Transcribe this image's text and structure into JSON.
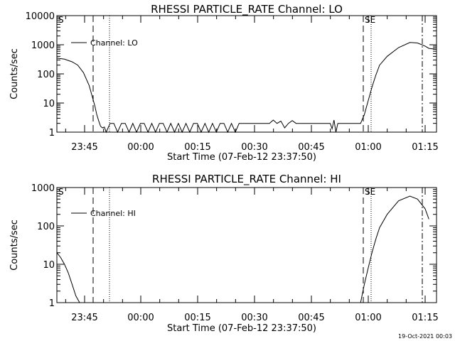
{
  "footer": {
    "timestamp": "19-Oct-2021 00:03"
  },
  "chart_data": [
    {
      "type": "line",
      "title": "RHESSI PARTICLE_RATE Channel: LO",
      "xlabel": "Start Time (07-Feb-12 23:37:50)",
      "ylabel": "Counts/sec",
      "yscale": "log",
      "ylim": [
        1,
        10000
      ],
      "ytick_labels": [
        "1",
        "10",
        "100",
        "1000",
        "10000"
      ],
      "x_unit": "minutes after 23:37:50",
      "xlim": [
        0,
        100
      ],
      "xtick_labels": [
        "23:45",
        "00:00",
        "00:15",
        "00:30",
        "00:45",
        "01:00",
        "01:15"
      ],
      "legend": "Channel: LO",
      "markers": {
        "start_label": "S",
        "end_label": "SE"
      },
      "series": [
        {
          "name": "Channel: LO",
          "x": [
            0,
            2,
            4,
            5.5,
            7,
            8.5,
            10,
            10.5,
            11,
            11.5,
            12,
            12.5,
            13,
            14,
            15,
            16,
            17,
            18,
            19,
            20,
            21,
            22,
            23,
            24,
            25,
            26,
            27,
            28,
            29,
            30,
            31,
            32,
            33,
            34,
            35,
            36,
            37,
            38,
            39,
            40,
            41,
            42,
            43,
            44,
            45,
            46,
            47,
            48,
            50,
            52,
            54,
            56,
            57,
            58,
            59,
            60,
            61,
            62,
            63,
            64,
            65,
            66,
            67,
            68,
            70,
            72,
            72.5,
            73,
            73.5,
            74,
            75,
            78,
            80,
            81,
            82,
            83,
            84,
            85,
            87,
            90,
            93,
            95,
            97,
            98,
            100
          ],
          "y": [
            350,
            320,
            260,
            200,
            110,
            40,
            8,
            4,
            2.5,
            1.6,
            1.4,
            1.5,
            1,
            2,
            2,
            1,
            2,
            2,
            1,
            2,
            1,
            2,
            2,
            1,
            2,
            1,
            2,
            2,
            1,
            2,
            1,
            2,
            1,
            2,
            1,
            2,
            2,
            1,
            2,
            1,
            2,
            1,
            2,
            2,
            1,
            2,
            1,
            2,
            2,
            2,
            2,
            2,
            2.6,
            2,
            2.4,
            1.4,
            2,
            2.5,
            2,
            2,
            2,
            2,
            2,
            2,
            2,
            2,
            1.3,
            2.6,
            1,
            2,
            2,
            2,
            2,
            4,
            12,
            35,
            90,
            200,
            400,
            800,
            1200,
            1150,
            900,
            750,
            700
          ]
        }
      ]
    },
    {
      "type": "line",
      "title": "RHESSI PARTICLE_RATE Channel: HI",
      "xlabel": "Start Time (07-Feb-12 23:37:50)",
      "ylabel": "Counts/sec",
      "yscale": "log",
      "ylim": [
        1,
        1000
      ],
      "ytick_labels": [
        "1",
        "10",
        "100",
        "1000"
      ],
      "x_unit": "minutes after 23:37:50",
      "xlim": [
        0,
        100
      ],
      "xtick_labels": [
        "23:45",
        "00:00",
        "00:15",
        "00:30",
        "00:45",
        "01:00",
        "01:15"
      ],
      "legend": "Channel: HI",
      "markers": {
        "start_label": "S",
        "end_label": "SE"
      },
      "series": [
        {
          "name": "Channel: HI",
          "x": [
            0,
            1,
            2,
            3,
            4,
            5,
            6
          ],
          "y": [
            20,
            15,
            10,
            6,
            3,
            1.5,
            1
          ]
        },
        {
          "name": "Channel: HI",
          "x": [
            80,
            81,
            82,
            83,
            84,
            85,
            87,
            90,
            93,
            95,
            97,
            98
          ],
          "y": [
            1,
            3,
            8,
            20,
            45,
            90,
            200,
            450,
            600,
            500,
            280,
            150
          ]
        }
      ]
    }
  ]
}
